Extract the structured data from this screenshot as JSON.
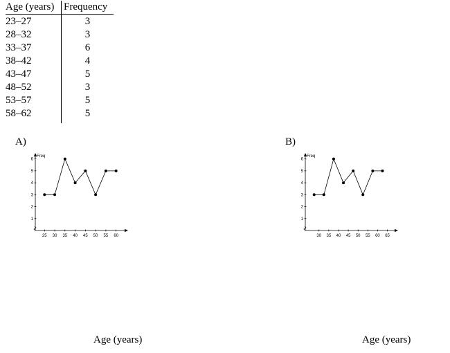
{
  "table": {
    "headers": [
      "Age (years)",
      "Frequency"
    ],
    "rows": [
      [
        "23–27",
        "3"
      ],
      [
        "28–32",
        "3"
      ],
      [
        "33–37",
        "6"
      ],
      [
        "38–42",
        "4"
      ],
      [
        "43–47",
        "5"
      ],
      [
        "48–52",
        "3"
      ],
      [
        "53–57",
        "5"
      ],
      [
        "58–62",
        "5"
      ]
    ]
  },
  "options": [
    {
      "letter": "A)",
      "xlabel": "Age (years)"
    },
    {
      "letter": "B)",
      "xlabel": "Age (years)"
    }
  ],
  "chart_data": [
    {
      "type": "line",
      "title": "",
      "ylabel": "Freq",
      "xlabel": "Age (years)",
      "x": [
        25,
        30,
        35,
        40,
        45,
        50,
        55,
        60
      ],
      "values": [
        3,
        3,
        6,
        4,
        5,
        3,
        5,
        5
      ],
      "xticks": [
        25,
        30,
        35,
        40,
        45,
        50,
        55,
        60
      ],
      "yticks": [
        1,
        2,
        3,
        4,
        5,
        6
      ],
      "xlim": [
        20.5,
        63.5
      ],
      "ylim": [
        0,
        6.5
      ],
      "grid": false
    },
    {
      "type": "line",
      "title": "",
      "ylabel": "Freq",
      "xlabel": "Age (years)",
      "x": [
        27.5,
        32.5,
        37.5,
        42.5,
        47.5,
        52.5,
        57.5,
        62.5
      ],
      "values": [
        3,
        3,
        6,
        4,
        5,
        3,
        5,
        5
      ],
      "xticks": [
        30,
        35,
        40,
        45,
        50,
        55,
        60,
        65
      ],
      "yticks": [
        1,
        2,
        3,
        4,
        5,
        6
      ],
      "xlim": [
        23,
        68
      ],
      "ylim": [
        0,
        6.5
      ],
      "grid": false
    }
  ]
}
